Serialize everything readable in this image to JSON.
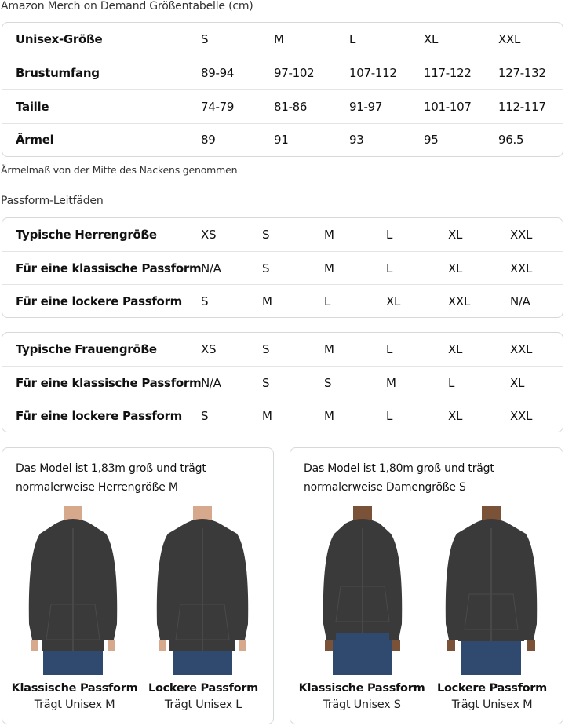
{
  "title": "Amazon Merch on Demand Größentabelle (cm)",
  "unisex_table": {
    "rows": [
      {
        "label": "Unisex-Größe",
        "values": [
          "S",
          "M",
          "L",
          "XL",
          "XXL"
        ]
      },
      {
        "label": "Brustumfang",
        "values": [
          "89-94",
          "97-102",
          "107-112",
          "117-122",
          "127-132"
        ]
      },
      {
        "label": "Taille",
        "values": [
          "74-79",
          "81-86",
          "91-97",
          "101-107",
          "112-117"
        ]
      },
      {
        "label": "Ärmel",
        "values": [
          "89",
          "91",
          "93",
          "95",
          "96.5"
        ]
      }
    ]
  },
  "note": "Ärmelmaß von der Mitte des Nackens genommen",
  "fit_title": "Passform-Leitfäden",
  "men_table": {
    "rows": [
      {
        "label": "Typische Herrengröße",
        "values": [
          "XS",
          "S",
          "M",
          "L",
          "XL",
          "XXL"
        ]
      },
      {
        "label": "Für eine klassische Passform",
        "values": [
          "N/A",
          "S",
          "M",
          "L",
          "XL",
          "XXL"
        ]
      },
      {
        "label": "Für eine lockere Passform",
        "values": [
          "S",
          "M",
          "L",
          "XL",
          "XXL",
          "N/A"
        ]
      }
    ]
  },
  "women_table": {
    "rows": [
      {
        "label": "Typische Frauengröße",
        "values": [
          "XS",
          "S",
          "M",
          "L",
          "XL",
          "XXL"
        ]
      },
      {
        "label": "Für eine klassische Passform",
        "values": [
          "N/A",
          "S",
          "S",
          "M",
          "L",
          "XL"
        ]
      },
      {
        "label": "Für eine lockere Passform",
        "values": [
          "S",
          "M",
          "M",
          "L",
          "XL",
          "XXL"
        ]
      }
    ]
  },
  "cards": [
    {
      "desc_line1": "Das Model ist 1,83m groß und trägt",
      "desc_line2": "normalerweise Herrengröße M",
      "fits": [
        {
          "title": "Klassische Passform",
          "size": "Trägt Unisex M"
        },
        {
          "title": "Lockere Passform",
          "size": "Trägt Unisex L"
        }
      ]
    },
    {
      "desc_line1": "Das Model ist 1,80m groß und trägt",
      "desc_line2": "normalerweise Damengröße S",
      "fits": [
        {
          "title": "Klassische Passform",
          "size": "Trägt Unisex S"
        },
        {
          "title": "Lockere Passform",
          "size": "Trägt Unisex M"
        }
      ]
    }
  ],
  "colors": {
    "border": "#d5d9d9",
    "hoodie": "#3a3a3a",
    "jeans": "#2f4a6e"
  }
}
